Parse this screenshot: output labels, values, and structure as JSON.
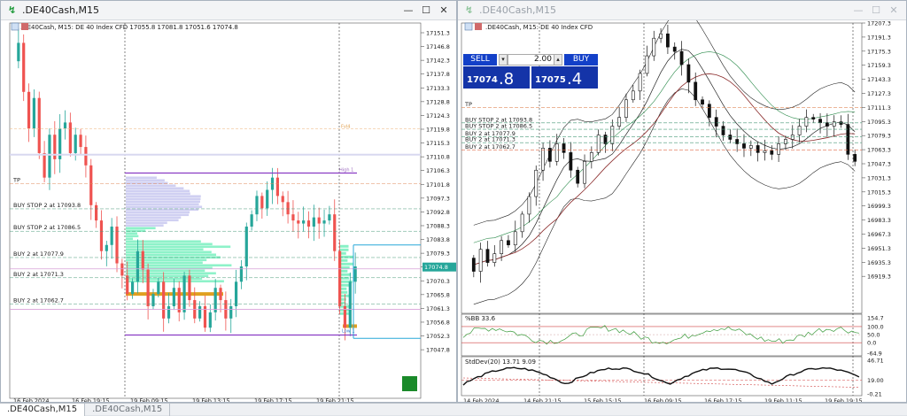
{
  "window1": {
    "title": ".DE40Cash,M15",
    "min_label": "—",
    "max_label": "☐",
    "close_label": "✕",
    "info": ".DE40Cash, M15:  DE 40 Index CFD    17055.8 17081.8 17051.6 17074.8",
    "price_labels": [
      "17151.3",
      "17146.8",
      "17142.3",
      "17137.8",
      "17133.3",
      "17128.8",
      "17124.3",
      "17119.8",
      "17115.3",
      "17110.8",
      "17106.3",
      "17101.8",
      "17097.3",
      "17092.8",
      "17088.3",
      "17083.8",
      "17079.3",
      "17074.8",
      "17070.3",
      "17065.8",
      "17061.3",
      "17056.8",
      "17052.3",
      "17047.8"
    ],
    "time_labels": [
      "16 Feb 2024",
      "16 Feb 19:15",
      "19 Feb 09:15",
      "19 Feb 13:15",
      "19 Feb 17:15",
      "19 Feb 21:15"
    ],
    "orders": [
      "TP",
      "BUY STOP 2 at 17093.8",
      "BUY STOP 2 at 17086.5",
      "BUY 2 at 17077.9",
      "BUY 2 at 17071.3",
      "BUY 2 at 17062.7"
    ],
    "current_price": "17074.8",
    "high_label": "High 1",
    "fvg_label": "Fvl4",
    "low_label": "Low 1"
  },
  "window2": {
    "title": ".DE40Cash,M15",
    "min_label": "—",
    "max_label": "☐",
    "close_label": "✕",
    "info": ".DE40Cash, M15:  DE 40 Index CFD",
    "trade": {
      "sell_label": "SELL",
      "buy_label": "BUY",
      "lot": "2.00",
      "bid_small": "17074",
      "bid_big": ".8",
      "ask_small": "17075",
      "ask_big": ".4"
    },
    "price_labels": [
      "17207.3",
      "17191.3",
      "17175.3",
      "17159.3",
      "17143.3",
      "17127.3",
      "17111.3",
      "17095.3",
      "17079.3",
      "17063.3",
      "17047.3",
      "17031.3",
      "17015.3",
      "16999.3",
      "16983.3",
      "16967.3",
      "16951.3",
      "16935.3",
      "16919.3"
    ],
    "orders": [
      "TP",
      "BUY STOP 2 at 17093.8",
      "BUY STOP 2 at 17086.5",
      "BUY 2 at 17077.9",
      "BUY 2 at 17071.3",
      "BUY 2 at 17062.7"
    ],
    "bb_label": "%BB 33.6",
    "bb_scale": [
      "154.7",
      "100.0",
      "50.0",
      "0.0",
      "-64.9"
    ],
    "std_label": "StdDev(20) 13.71 9.09",
    "std_scale": [
      "46.71",
      "19.00",
      "-0.21"
    ],
    "time_labels": [
      "14 Feb 2024",
      "14 Feb 21:15",
      "15 Feb 15:15",
      "16 Feb 09:15",
      "16 Feb 17:15",
      "19 Feb 11:15",
      "19 Feb 19:15"
    ]
  },
  "tabs": [
    ".DE40Cash,M15",
    ".DE40Cash,M15"
  ],
  "colors": {
    "bull": "#26a69a",
    "bear": "#ef5350",
    "volume_profile": "#7af0c0",
    "volume_profile_light": "#c8c8f0",
    "poc": "#e0a020",
    "range": "#8a3cc4",
    "trade_blue": "#1340c8"
  }
}
